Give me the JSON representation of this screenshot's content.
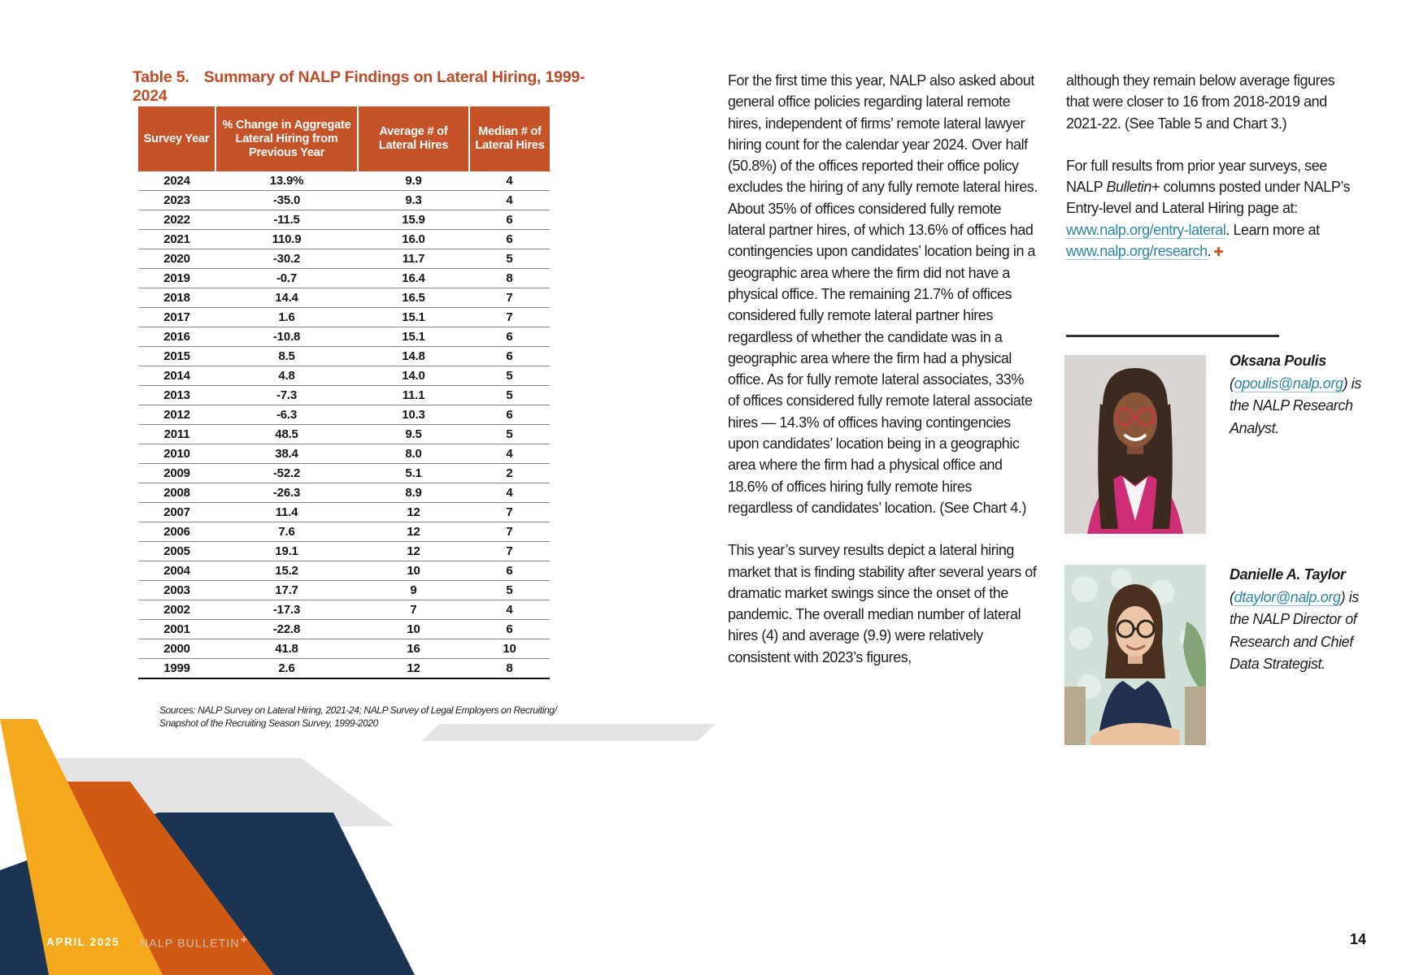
{
  "page": {
    "number": "14"
  },
  "footer": {
    "date": "APRIL 2025",
    "brand": "NALP BULLETIN",
    "plus": "✚"
  },
  "table": {
    "title_label": "Table 5.",
    "title": "Summary of NALP Findings on Lateral Hiring, 1999-2024",
    "columns": [
      "Survey Year",
      "% Change in Aggregate Lateral Hiring from Previous Year",
      "Average # of Lateral Hires",
      "Median # of Lateral Hires"
    ],
    "rows": [
      [
        "2024",
        "13.9%",
        "9.9",
        "4"
      ],
      [
        "2023",
        "-35.0",
        "9.3",
        "4"
      ],
      [
        "2022",
        "-11.5",
        "15.9",
        "6"
      ],
      [
        "2021",
        "110.9",
        "16.0",
        "6"
      ],
      [
        "2020",
        "-30.2",
        "11.7",
        "5"
      ],
      [
        "2019",
        "-0.7",
        "16.4",
        "8"
      ],
      [
        "2018",
        "14.4",
        "16.5",
        "7"
      ],
      [
        "2017",
        "1.6",
        "15.1",
        "7"
      ],
      [
        "2016",
        "-10.8",
        "15.1",
        "6"
      ],
      [
        "2015",
        "8.5",
        "14.8",
        "6"
      ],
      [
        "2014",
        "4.8",
        "14.0",
        "5"
      ],
      [
        "2013",
        "-7.3",
        "11.1",
        "5"
      ],
      [
        "2012",
        "-6.3",
        "10.3",
        "6"
      ],
      [
        "2011",
        "48.5",
        "9.5",
        "5"
      ],
      [
        "2010",
        "38.4",
        "8.0",
        "4"
      ],
      [
        "2009",
        "-52.2",
        "5.1",
        "2"
      ],
      [
        "2008",
        "-26.3",
        "8.9",
        "4"
      ],
      [
        "2007",
        "11.4",
        "12",
        "7"
      ],
      [
        "2006",
        "7.6",
        "12",
        "7"
      ],
      [
        "2005",
        "19.1",
        "12",
        "7"
      ],
      [
        "2004",
        "15.2",
        "10",
        "6"
      ],
      [
        "2003",
        "17.7",
        "9",
        "5"
      ],
      [
        "2002",
        "-17.3",
        "7",
        "4"
      ],
      [
        "2001",
        "-22.8",
        "10",
        "6"
      ],
      [
        "2000",
        "41.8",
        "16",
        "10"
      ],
      [
        "1999",
        "2.6",
        "12",
        "8"
      ]
    ],
    "sources_line1": "Sources: NALP Survey on Lateral Hiring, 2021-24; NALP Survey of Legal Employers on Recruiting/",
    "sources_line2": "Snapshot of the Recruiting Season Survey, 1999-2020"
  },
  "article": {
    "col1_para1": "For the first time this year, NALP also asked about general office policies regarding lateral remote hires, independent of firms’ remote lateral lawyer hiring count for the calendar year 2024. Over half (50.8%) of the offices reported their office policy excludes the hiring of any fully remote lateral hires. About 35% of offices considered fully remote lateral partner hires, of which 13.6% of offices had contingencies upon candidates’ location being in a geographic area where the firm did not have a physical office. The remaining 21.7% of offices considered fully remote lateral partner hires regardless of whether the candidate was in a geographic area where the firm had a physical office. As for fully remote lateral associates, 33% of offices considered fully remote lateral associate hires — 14.3% of offices having contingencies upon candidates’ location being in a geographic area where the firm had a physical office and 18.6% of offices hiring fully remote hires regardless of candidates’ location. (See Chart 4.)",
    "col1_para2": "This year’s survey results depict a lateral hiring market that is finding stability after several years of dramatic market swings since the onset of the pandemic. The overall median number of lateral hires (4) and average (9.9) were relatively consistent with 2023’s figures,",
    "col2_para1": "although they remain below average figures that were closer to 16 from 2018-2019 and 2021-22. (See Table 5 and Chart 3.)",
    "col2_para2_pre": "For full results from prior year surveys, see NALP ",
    "col2_para2_italic": "Bulletin+",
    "col2_para2_mid": " columns posted under NALP’s Entry-level and Lateral Hiring page at: ",
    "col2_link1": "www.nalp.org/entry-lateral",
    "col2_para2_mid2": ". Learn more at ",
    "col2_link2": "www.nalp.org/research",
    "col2_para2_end": ".",
    "end_plus": "✚"
  },
  "authors": [
    {
      "name": "Oksana Poulis",
      "email": "opoulis@nalp.org",
      "rest": "is the NALP Research Analyst."
    },
    {
      "name": "Danielle A. Taylor",
      "email": "dtaylor@nalp.org",
      "rest": "is the NALP Director of Research and Chief Data Strategist."
    }
  ],
  "colors": {
    "accent_orange": "#c65327",
    "title_orange": "#bd4b26",
    "decor_orange": "#d05914",
    "decor_yellow": "#f4a91c",
    "decor_navy": "#1b3454",
    "decor_gray": "#e4e4e6",
    "link_teal": "#2c86a4"
  }
}
